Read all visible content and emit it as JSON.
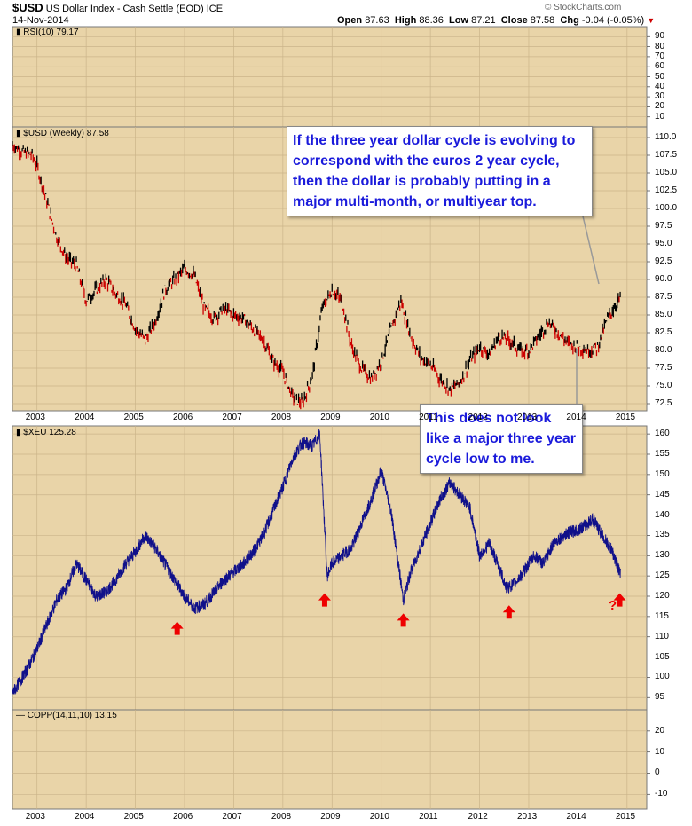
{
  "header": {
    "symbol": "$USD",
    "description": "US Dollar Index - Cash Settle (EOD) ICE",
    "date": "14-Nov-2014",
    "open_label": "Open",
    "open": "87.63",
    "high_label": "High",
    "high": "88.36",
    "low_label": "Low",
    "low": "87.21",
    "close_label": "Close",
    "close": "87.58",
    "chg_label": "Chg",
    "chg": "-0.04 (-0.05%)",
    "watermark": "© StockCharts.com"
  },
  "colors": {
    "panel_bg": "#e9d4a8",
    "grid": "#cbb48a",
    "usd_line": "#000000",
    "usd_down": "#cc0000",
    "xeu_line": "#10108a",
    "arrow": "#ee0000",
    "note_text": "#1a1adb"
  },
  "panels": {
    "rsi": {
      "label": "RSI(10) 79.17",
      "ticks": [
        "90",
        "80",
        "70",
        "60",
        "50",
        "40",
        "30",
        "20",
        "10"
      ]
    },
    "usd": {
      "label": "$USD (Weekly) 87.58",
      "ticks": [
        "110.0",
        "107.5",
        "105.0",
        "102.5",
        "100.0",
        "97.5",
        "95.0",
        "92.5",
        "90.0",
        "87.5",
        "85.0",
        "82.5",
        "80.0",
        "77.5",
        "75.0",
        "72.5"
      ]
    },
    "xeu": {
      "label": "$XEU 125.28",
      "ticks": [
        "160",
        "155",
        "150",
        "145",
        "140",
        "135",
        "130",
        "125",
        "120",
        "115",
        "110",
        "105",
        "100",
        "95"
      ]
    },
    "copp": {
      "label": "COPP(14,11,10) 13.15",
      "ticks": [
        "20",
        "10",
        "0",
        "-10"
      ]
    }
  },
  "x_axis": {
    "years": [
      "2003",
      "2004",
      "2005",
      "2006",
      "2007",
      "2008",
      "2009",
      "2010",
      "2011",
      "2012",
      "2013",
      "2014",
      "2015"
    ]
  },
  "annotations": {
    "note_top": "If the three year dollar cycle is evolving to correspond with the euros 2 year cycle, then the dollar is probably putting in a major multi-month, or multiyear top.",
    "note_bottom": "This does not look like a major three year cycle low to me.",
    "question": "?"
  },
  "chart_data": [
    {
      "type": "line",
      "title": "$USD (Weekly)",
      "x": [
        2002.5,
        2002.7,
        2002.9,
        2003.0,
        2003.2,
        2003.4,
        2003.6,
        2003.8,
        2004.0,
        2004.2,
        2004.4,
        2004.6,
        2004.8,
        2005.0,
        2005.2,
        2005.4,
        2005.6,
        2005.8,
        2006.0,
        2006.2,
        2006.4,
        2006.6,
        2006.8,
        2007.0,
        2007.2,
        2007.4,
        2007.6,
        2007.8,
        2008.0,
        2008.2,
        2008.4,
        2008.6,
        2008.8,
        2009.0,
        2009.2,
        2009.4,
        2009.6,
        2009.8,
        2010.0,
        2010.2,
        2010.4,
        2010.6,
        2010.8,
        2011.0,
        2011.2,
        2011.4,
        2011.6,
        2011.8,
        2012.0,
        2012.2,
        2012.4,
        2012.6,
        2012.8,
        2013.0,
        2013.2,
        2013.4,
        2013.6,
        2013.8,
        2014.0,
        2014.2,
        2014.4,
        2014.6,
        2014.87
      ],
      "values": [
        109.0,
        108.0,
        107.5,
        106.0,
        101.0,
        96.0,
        93.0,
        92.0,
        87.0,
        88.5,
        90.0,
        88.0,
        86.5,
        83.0,
        81.5,
        84.0,
        88.5,
        90.0,
        91.5,
        90.5,
        86.0,
        84.5,
        86.0,
        85.0,
        84.5,
        83.0,
        81.5,
        78.5,
        77.0,
        73.5,
        72.5,
        76.5,
        86.0,
        88.5,
        87.0,
        80.5,
        77.5,
        76.0,
        78.5,
        83.0,
        87.0,
        82.0,
        79.0,
        78.0,
        76.0,
        74.5,
        75.5,
        78.5,
        80.5,
        79.5,
        82.0,
        81.5,
        80.0,
        80.0,
        82.0,
        84.0,
        82.5,
        81.0,
        80.5,
        80.0,
        80.5,
        84.5,
        87.58
      ],
      "ylim": [
        71.5,
        111.5
      ],
      "xlim": [
        2002.5,
        2015.4
      ]
    },
    {
      "type": "line",
      "title": "$XEU",
      "x": [
        2002.5,
        2002.6,
        2002.8,
        2003.0,
        2003.2,
        2003.4,
        2003.6,
        2003.8,
        2004.0,
        2004.2,
        2004.4,
        2004.6,
        2004.8,
        2005.0,
        2005.2,
        2005.4,
        2005.6,
        2005.8,
        2006.0,
        2006.2,
        2006.4,
        2006.6,
        2006.8,
        2007.0,
        2007.2,
        2007.4,
        2007.6,
        2007.8,
        2008.0,
        2008.2,
        2008.4,
        2008.6,
        2008.75,
        2008.9,
        2009.0,
        2009.2,
        2009.4,
        2009.6,
        2009.8,
        2010.0,
        2010.2,
        2010.45,
        2010.6,
        2010.8,
        2011.0,
        2011.2,
        2011.4,
        2011.6,
        2011.8,
        2012.0,
        2012.2,
        2012.4,
        2012.55,
        2012.7,
        2012.9,
        2013.1,
        2013.3,
        2013.5,
        2013.7,
        2013.9,
        2014.1,
        2014.3,
        2014.5,
        2014.7,
        2014.87
      ],
      "values": [
        96,
        98,
        102,
        107,
        113,
        119,
        122,
        128,
        124,
        120,
        121,
        124,
        128,
        131,
        135,
        132,
        128,
        124,
        120,
        117,
        118,
        121,
        124,
        126,
        128,
        131,
        135,
        141,
        147,
        154,
        158,
        157,
        160,
        125,
        128,
        130,
        132,
        138,
        144,
        151,
        141,
        119,
        126,
        132,
        138,
        144,
        148,
        145,
        142,
        130,
        133,
        127,
        122,
        123,
        126,
        130,
        128,
        133,
        135,
        136,
        137,
        139,
        135,
        131,
        125.28
      ],
      "ylim": [
        92,
        162
      ],
      "xlim": [
        2002.5,
        2015.4
      ]
    }
  ]
}
